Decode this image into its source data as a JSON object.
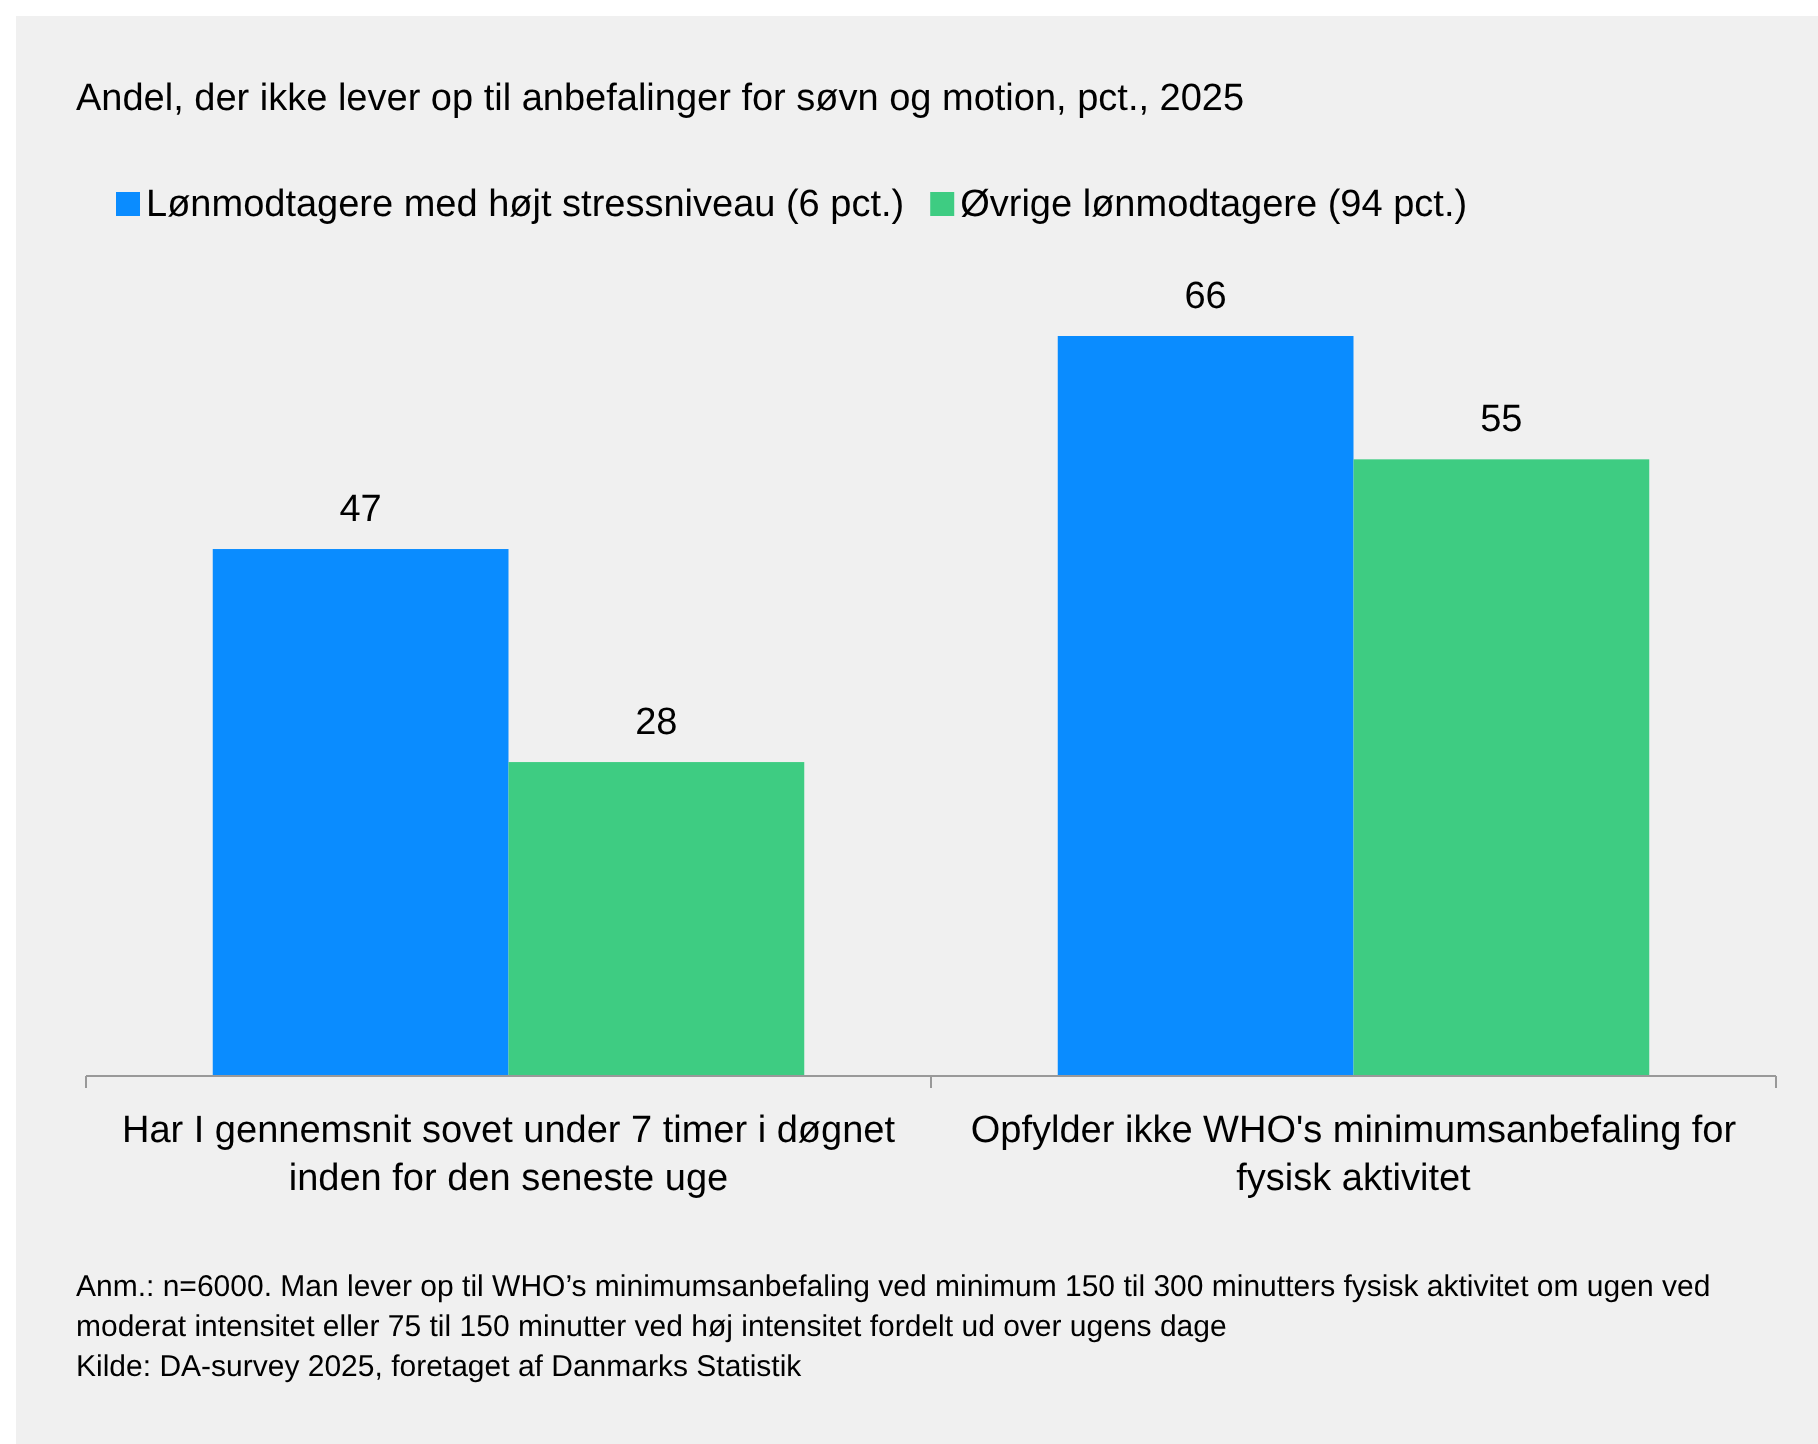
{
  "chart_data": {
    "type": "bar",
    "title": "Andel, der ikke lever op til anbefalinger for søvn og motion, pct., 2025",
    "categories": [
      "Har I gennemsnit sovet under 7 timer i døgnet inden for den seneste uge",
      "Opfylder ikke WHO's minimumsanbefaling for fysisk aktivitet"
    ],
    "series": [
      {
        "name": "Lønmodtagere med højt stressniveau (6 pct.)",
        "color": "#0a8cff",
        "values": [
          47,
          66
        ]
      },
      {
        "name": "Øvrige lønmodtagere (94 pct.)",
        "color": "#3ecc82",
        "values": [
          28,
          55
        ]
      }
    ],
    "data_labels": true,
    "legend": "top",
    "grid": false,
    "annotations": [
      "Anm.: n=6000. Man lever op til WHO’s minimumsanbefaling ved minimum 150 til 300 minutters fysisk aktivitet om ugen ved moderat intensitet eller 75 til 150 minutter ved høj intensitet fordelt ud over ugens dage",
      "Kilde: DA-survey 2025, foretaget af Danmarks Statistik"
    ]
  }
}
